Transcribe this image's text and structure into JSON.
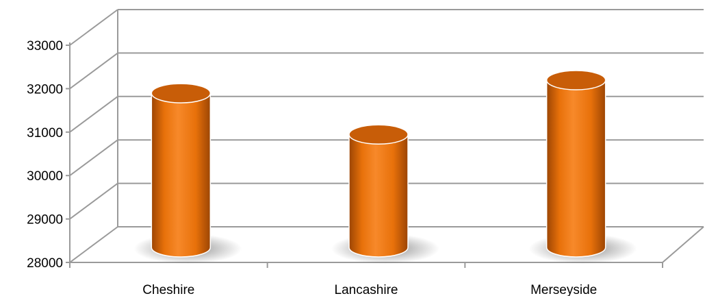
{
  "chart_data": {
    "type": "bar",
    "style": "3d-cylinder",
    "title": "",
    "xlabel": "",
    "ylabel": "",
    "categories": [
      "Cheshire",
      "Lancashire",
      "Merseyside"
    ],
    "values": [
      31800,
      30850,
      32100
    ],
    "ylim": [
      28000,
      33000
    ],
    "yticks": [
      "28000",
      "29000",
      "30000",
      "31000",
      "32000",
      "33000"
    ],
    "grid": true,
    "legend": "none",
    "colors": {
      "bar_light": "#f7892a",
      "bar_mid": "#e8710a",
      "bar_dark": "#9c4504",
      "bar_top": "#c85d08",
      "grid": "#9a9a9a"
    }
  }
}
